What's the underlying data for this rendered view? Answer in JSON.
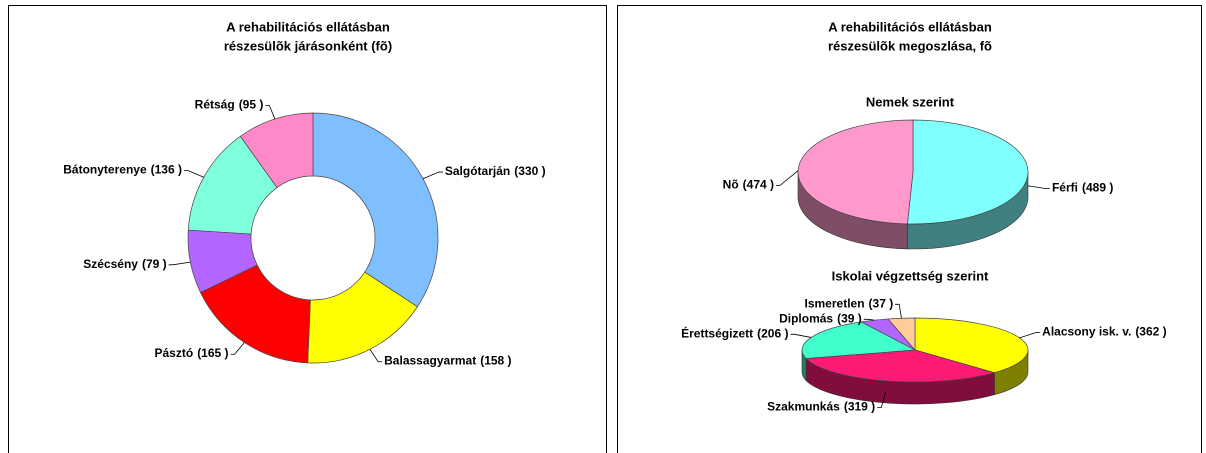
{
  "right_title": [
    "A rehabilitációs ellátásban",
    "részesülõk megoszlása, fõ"
  ],
  "chart_data": [
    {
      "type": "donut",
      "title": [
        "A rehabilitációs ellátásban",
        "részesülõk járásonként (fõ)"
      ],
      "categories": [
        "Salgótarján",
        "Balassagyarmat",
        "Pásztó",
        "Szécsény",
        "Bátonyterenye",
        "Rétság"
      ],
      "values": [
        330,
        158,
        165,
        79,
        136,
        95
      ],
      "value_labels": [
        "(330 )",
        "(158 )",
        "(165 )",
        "(79 )",
        "(136 )",
        "(95 )"
      ],
      "colors": [
        "#80bfff",
        "#ffff00",
        "#ff0000",
        "#b266ff",
        "#80ffdd",
        "#ff88c8"
      ]
    },
    {
      "type": "pie",
      "3d": true,
      "title": "Nemek szerint",
      "categories": [
        "Férfi",
        "Nõ"
      ],
      "values": [
        489,
        474
      ],
      "value_labels": [
        "(489 )",
        "(474 )"
      ],
      "colors": [
        "#80ffff",
        "#ff99cc"
      ]
    },
    {
      "type": "pie",
      "3d": true,
      "title": "Iskolai végzettség szerint",
      "categories": [
        "Alacsony isk. v.",
        "Szakmunkás",
        "Érettségizett",
        "Diplomás",
        "Ismeretlen"
      ],
      "values": [
        362,
        319,
        206,
        39,
        37
      ],
      "value_labels": [
        "(362 )",
        "(319 )",
        "(206 )",
        "(39 )",
        "(37 )"
      ],
      "colors": [
        "#ffff00",
        "#ff1a75",
        "#40ffcc",
        "#b266ff",
        "#ffcc99"
      ]
    }
  ]
}
